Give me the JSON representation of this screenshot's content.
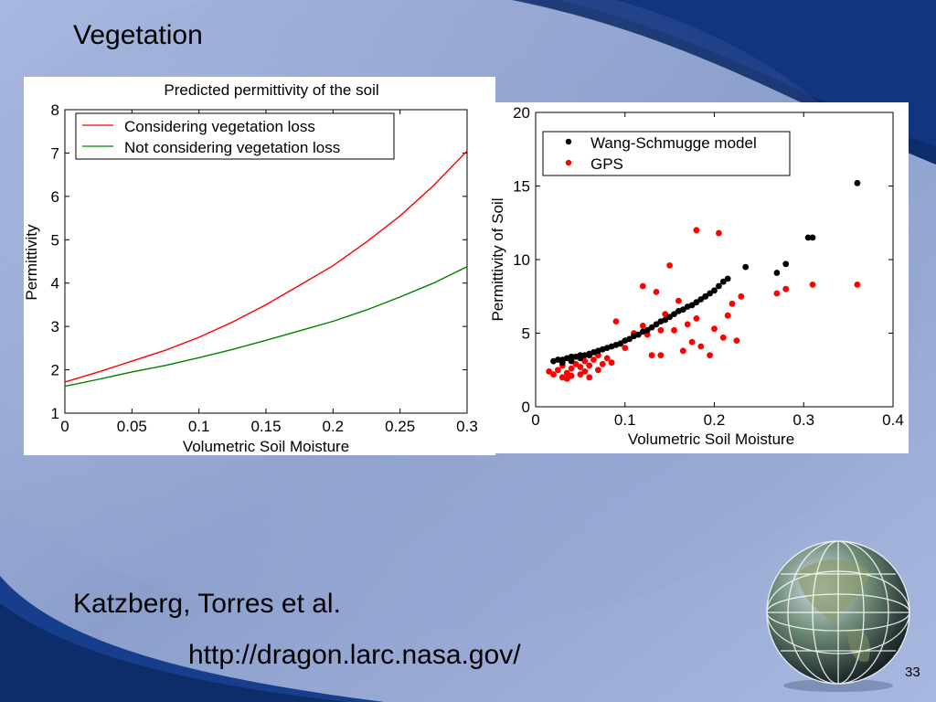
{
  "slide": {
    "title": "Vegetation",
    "author": "Katzberg, Torres et al.",
    "url": "http://dragon.larc.nasa.gov/",
    "page_number": "33"
  },
  "colors": {
    "red": "#ff0000",
    "green": "#008000",
    "black": "#000000",
    "bg_light": "#a6b6dc",
    "bg_dark": "#0a2a66"
  },
  "chart_data": [
    {
      "type": "line",
      "title": "Predicted permittivity of the soil",
      "xlabel": "Volumetric Soil Moisture",
      "ylabel": "Permittivity",
      "xlim": [
        0,
        0.3
      ],
      "ylim": [
        1,
        8
      ],
      "xticks": [
        "0",
        "0.05",
        "0.1",
        "0.15",
        "0.2",
        "0.25",
        "0.3"
      ],
      "yticks": [
        "1",
        "2",
        "3",
        "4",
        "5",
        "6",
        "7",
        "8"
      ],
      "grid": false,
      "legend_position": "top",
      "x": [
        0,
        0.025,
        0.05,
        0.075,
        0.1,
        0.125,
        0.15,
        0.175,
        0.2,
        0.225,
        0.25,
        0.275,
        0.3
      ],
      "series": [
        {
          "name": "Considering vegetation loss",
          "color": "#ff0000",
          "values": [
            1.72,
            1.95,
            2.2,
            2.45,
            2.75,
            3.1,
            3.5,
            3.95,
            4.4,
            4.95,
            5.55,
            6.25,
            7.05
          ]
        },
        {
          "name": "Not considering vegetation loss",
          "color": "#008000",
          "values": [
            1.62,
            1.78,
            1.95,
            2.1,
            2.28,
            2.47,
            2.68,
            2.9,
            3.12,
            3.38,
            3.68,
            4.0,
            4.38
          ]
        }
      ]
    },
    {
      "type": "scatter",
      "title": "",
      "xlabel": "Volumetric Soil Moisture",
      "ylabel": "Permittivity of Soil",
      "xlim": [
        0,
        0.4
      ],
      "ylim": [
        0,
        20
      ],
      "xticks": [
        "0",
        "0.1",
        "0.2",
        "0.3",
        "0.4"
      ],
      "yticks": [
        "0",
        "5",
        "10",
        "15",
        "20"
      ],
      "grid": false,
      "legend_position": "top-left",
      "series": [
        {
          "name": "Wang-Schmugge model",
          "color": "#000000",
          "points": [
            [
              0.02,
              3.1
            ],
            [
              0.025,
              3.2
            ],
            [
              0.03,
              3.2
            ],
            [
              0.035,
              3.3
            ],
            [
              0.04,
              3.4
            ],
            [
              0.045,
              3.4
            ],
            [
              0.05,
              3.5
            ],
            [
              0.055,
              3.5
            ],
            [
              0.06,
              3.6
            ],
            [
              0.065,
              3.7
            ],
            [
              0.07,
              3.8
            ],
            [
              0.075,
              3.9
            ],
            [
              0.08,
              4.0
            ],
            [
              0.085,
              4.1
            ],
            [
              0.09,
              4.2
            ],
            [
              0.095,
              4.3
            ],
            [
              0.1,
              4.5
            ],
            [
              0.105,
              4.6
            ],
            [
              0.11,
              4.8
            ],
            [
              0.115,
              4.9
            ],
            [
              0.12,
              5.1
            ],
            [
              0.125,
              5.2
            ],
            [
              0.13,
              5.4
            ],
            [
              0.135,
              5.6
            ],
            [
              0.14,
              5.8
            ],
            [
              0.145,
              5.9
            ],
            [
              0.15,
              6.1
            ],
            [
              0.155,
              6.3
            ],
            [
              0.16,
              6.5
            ],
            [
              0.165,
              6.6
            ],
            [
              0.17,
              6.8
            ],
            [
              0.175,
              6.9
            ],
            [
              0.18,
              7.1
            ],
            [
              0.185,
              7.3
            ],
            [
              0.19,
              7.5
            ],
            [
              0.195,
              7.7
            ],
            [
              0.2,
              7.9
            ],
            [
              0.205,
              8.2
            ],
            [
              0.21,
              8.5
            ],
            [
              0.215,
              8.7
            ],
            [
              0.235,
              9.5
            ],
            [
              0.27,
              9.1
            ],
            [
              0.28,
              9.7
            ],
            [
              0.305,
              11.5
            ],
            [
              0.31,
              11.5
            ],
            [
              0.36,
              15.2
            ],
            [
              0.03,
              3.0
            ],
            [
              0.04,
              3.1
            ],
            [
              0.05,
              3.3
            ],
            [
              0.06,
              3.5
            ]
          ]
        },
        {
          "name": "GPS",
          "color": "#ff0000",
          "points": [
            [
              0.02,
              2.2
            ],
            [
              0.025,
              2.5
            ],
            [
              0.03,
              2.0
            ],
            [
              0.03,
              2.8
            ],
            [
              0.035,
              2.3
            ],
            [
              0.04,
              2.1
            ],
            [
              0.04,
              2.6
            ],
            [
              0.045,
              2.9
            ],
            [
              0.05,
              2.2
            ],
            [
              0.05,
              2.7
            ],
            [
              0.055,
              2.4
            ],
            [
              0.06,
              2.0
            ],
            [
              0.06,
              2.8
            ],
            [
              0.065,
              3.2
            ],
            [
              0.07,
              2.5
            ],
            [
              0.07,
              3.5
            ],
            [
              0.075,
              2.9
            ],
            [
              0.08,
              3.3
            ],
            [
              0.085,
              3.0
            ],
            [
              0.09,
              5.8
            ],
            [
              0.095,
              4.3
            ],
            [
              0.1,
              4.0
            ],
            [
              0.11,
              5.0
            ],
            [
              0.12,
              5.5
            ],
            [
              0.12,
              8.2
            ],
            [
              0.125,
              4.9
            ],
            [
              0.13,
              3.5
            ],
            [
              0.135,
              7.8
            ],
            [
              0.14,
              5.2
            ],
            [
              0.14,
              3.5
            ],
            [
              0.145,
              6.3
            ],
            [
              0.15,
              9.6
            ],
            [
              0.155,
              5.2
            ],
            [
              0.16,
              7.2
            ],
            [
              0.165,
              3.8
            ],
            [
              0.17,
              5.6
            ],
            [
              0.175,
              4.4
            ],
            [
              0.18,
              12.0
            ],
            [
              0.18,
              6.0
            ],
            [
              0.185,
              4.1
            ],
            [
              0.19,
              7.5
            ],
            [
              0.195,
              3.5
            ],
            [
              0.2,
              5.3
            ],
            [
              0.205,
              11.8
            ],
            [
              0.21,
              4.7
            ],
            [
              0.215,
              6.2
            ],
            [
              0.22,
              7.0
            ],
            [
              0.225,
              4.5
            ],
            [
              0.23,
              7.5
            ],
            [
              0.27,
              7.7
            ],
            [
              0.28,
              8.0
            ],
            [
              0.31,
              8.3
            ],
            [
              0.36,
              8.3
            ],
            [
              0.015,
              2.4
            ],
            [
              0.035,
              1.9
            ],
            [
              0.055,
              3.1
            ]
          ]
        }
      ]
    }
  ]
}
